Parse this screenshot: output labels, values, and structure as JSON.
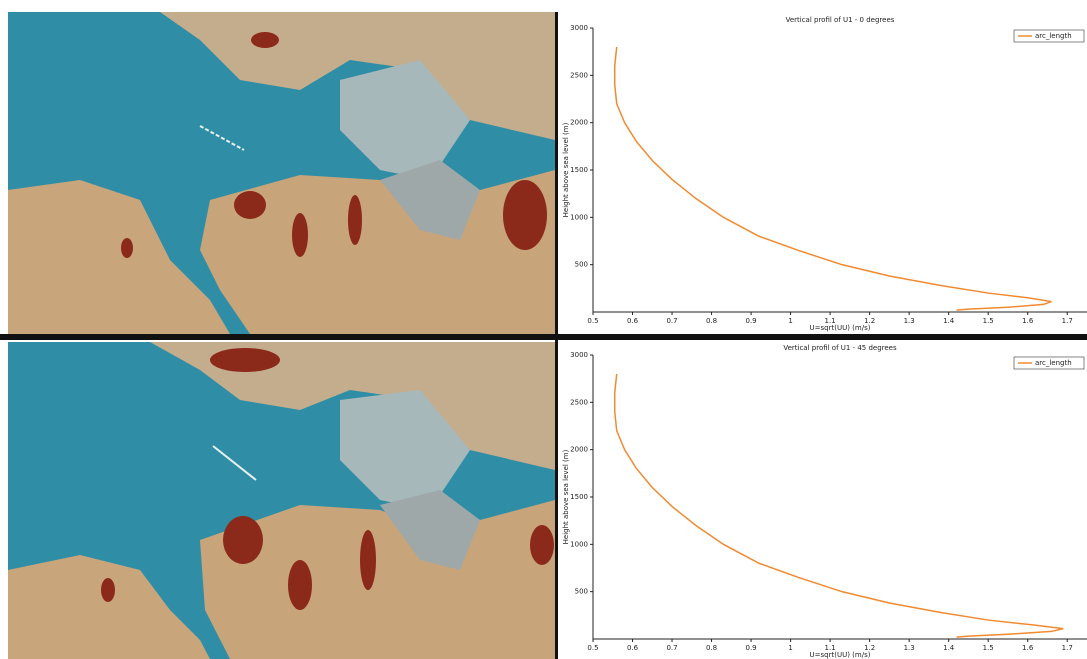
{
  "chart_data": [
    {
      "type": "line",
      "title": "Vertical profil of U1 - 0 degrees",
      "xlabel": "U=sqrt(UU) (m/s)",
      "ylabel": "Height above sea level (m)",
      "x": [
        0.56,
        0.555,
        0.555,
        0.56,
        0.58,
        0.61,
        0.65,
        0.7,
        0.76,
        0.83,
        0.92,
        1.02,
        1.13,
        1.25,
        1.38,
        1.5,
        1.6,
        1.66,
        1.64,
        1.55,
        1.45,
        1.42
      ],
      "series": [
        {
          "name": "arc_length",
          "color": "#f08a30",
          "values": [
            2800,
            2600,
            2400,
            2200,
            2000,
            1800,
            1600,
            1400,
            1200,
            1000,
            800,
            650,
            500,
            380,
            280,
            200,
            150,
            110,
            80,
            50,
            30,
            20
          ]
        }
      ],
      "xlim": [
        0.5,
        1.75
      ],
      "ylim": [
        0,
        3000
      ],
      "xticks": [
        0.5,
        0.6,
        0.7,
        0.8,
        0.9,
        1,
        1.1,
        1.2,
        1.3,
        1.4,
        1.5,
        1.6,
        1.7
      ],
      "yticks": [
        500,
        1000,
        1500,
        2000,
        2500,
        3000
      ]
    },
    {
      "type": "line",
      "title": "Vertical profil of U1 - 45 degrees",
      "xlabel": "U=sqrt(UU) (m/s)",
      "ylabel": "Height above sea level (m)",
      "x": [
        0.56,
        0.555,
        0.555,
        0.56,
        0.58,
        0.61,
        0.65,
        0.7,
        0.76,
        0.83,
        0.92,
        1.02,
        1.13,
        1.25,
        1.38,
        1.5,
        1.61,
        1.69,
        1.66,
        1.55,
        1.45,
        1.42
      ],
      "series": [
        {
          "name": "arc_length",
          "color": "#f08a30",
          "values": [
            2800,
            2600,
            2400,
            2200,
            2000,
            1800,
            1600,
            1400,
            1200,
            1000,
            800,
            650,
            500,
            380,
            280,
            200,
            150,
            110,
            80,
            50,
            30,
            20
          ]
        }
      ],
      "xlim": [
        0.5,
        1.75
      ],
      "ylim": [
        0,
        3000
      ],
      "xticks": [
        0.5,
        0.6,
        0.7,
        0.8,
        0.9,
        1,
        1.1,
        1.2,
        1.3,
        1.4,
        1.5,
        1.6,
        1.7
      ],
      "yticks": [
        500,
        1000,
        1500,
        2000,
        2500,
        3000
      ]
    }
  ]
}
